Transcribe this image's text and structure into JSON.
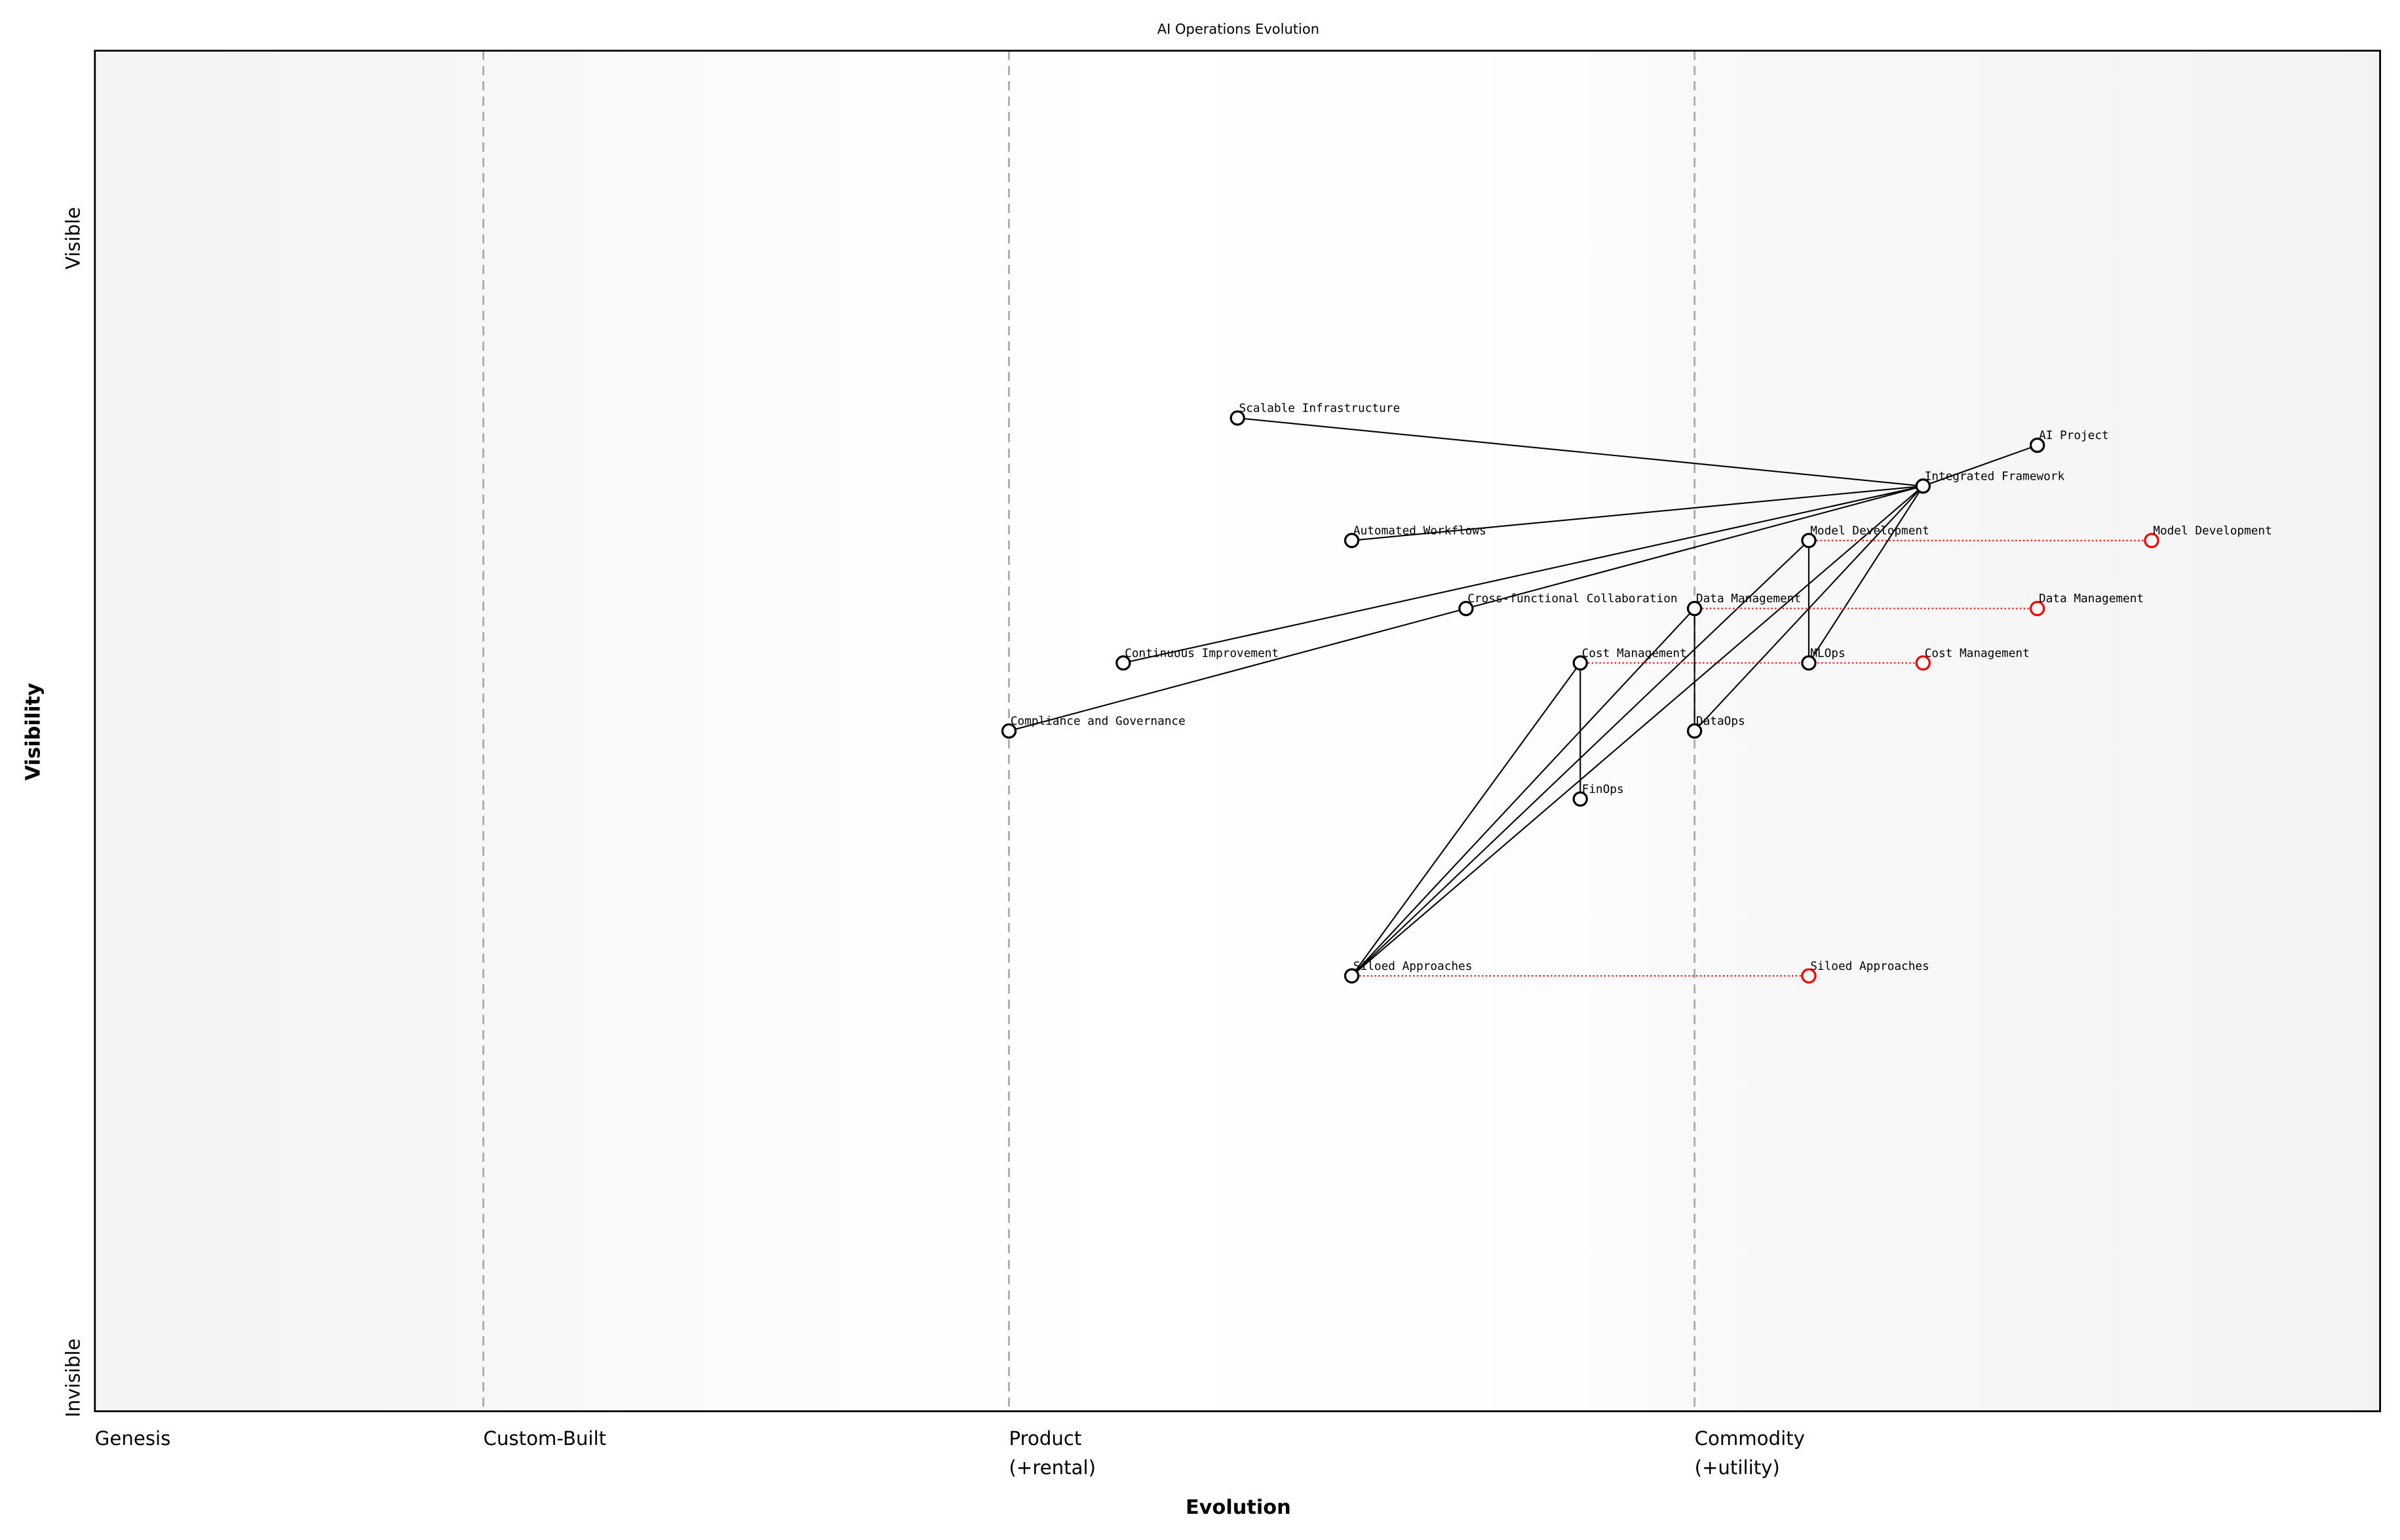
{
  "title": "AI Operations Evolution",
  "x_axis": {
    "label": "Evolution",
    "stages": [
      {
        "name": "Genesis",
        "lines": [
          "Genesis"
        ],
        "evolution": 0.0
      },
      {
        "name": "Custom-Built",
        "lines": [
          "Custom-Built"
        ],
        "evolution": 0.17
      },
      {
        "name": "Product (+rental)",
        "lines": [
          "Product",
          "(+rental)"
        ],
        "evolution": 0.4
      },
      {
        "name": "Commodity (+utility)",
        "lines": [
          "Commodity",
          "(+utility)"
        ],
        "evolution": 0.7
      }
    ]
  },
  "y_axis": {
    "label": "Visibility",
    "top": "Visible",
    "bottom": "Invisible"
  },
  "colors": {
    "node": "#000000",
    "evolved": "#ff0000",
    "stage_line": "#aaaaaa",
    "shade": "#f3f3f3"
  },
  "components": [
    {
      "name": "AI Project",
      "evolution": 0.85,
      "visibility": 0.71
    },
    {
      "name": "Integrated Framework",
      "evolution": 0.8,
      "visibility": 0.68
    },
    {
      "name": "Scalable Infrastructure",
      "evolution": 0.5,
      "visibility": 0.73
    },
    {
      "name": "Automated Workflows",
      "evolution": 0.55,
      "visibility": 0.64
    },
    {
      "name": "Model Development",
      "evolution": 0.75,
      "visibility": 0.64
    },
    {
      "name": "Cross-functional Collaboration",
      "evolution": 0.6,
      "visibility": 0.59
    },
    {
      "name": "Data Management",
      "evolution": 0.7,
      "visibility": 0.59
    },
    {
      "name": "Continuous Improvement",
      "evolution": 0.45,
      "visibility": 0.55
    },
    {
      "name": "Cost Management",
      "evolution": 0.65,
      "visibility": 0.55
    },
    {
      "name": "MLOps",
      "evolution": 0.75,
      "visibility": 0.55
    },
    {
      "name": "Compliance and Governance",
      "evolution": 0.4,
      "visibility": 0.5
    },
    {
      "name": "DataOps",
      "evolution": 0.7,
      "visibility": 0.5
    },
    {
      "name": "FinOps",
      "evolution": 0.65,
      "visibility": 0.45
    },
    {
      "name": "Siloed Approaches",
      "evolution": 0.55,
      "visibility": 0.32
    }
  ],
  "links": [
    [
      "AI Project",
      "Integrated Framework"
    ],
    [
      "Integrated Framework",
      "Scalable Infrastructure"
    ],
    [
      "Integrated Framework",
      "Automated Workflows"
    ],
    [
      "Integrated Framework",
      "Continuous Improvement"
    ],
    [
      "Integrated Framework",
      "Cross-functional Collaboration"
    ],
    [
      "Cross-functional Collaboration",
      "Compliance and Governance"
    ],
    [
      "Integrated Framework",
      "MLOps"
    ],
    [
      "Integrated Framework",
      "DataOps"
    ],
    [
      "Integrated Framework",
      "Siloed Approaches"
    ],
    [
      "Model Development",
      "MLOps"
    ],
    [
      "Model Development",
      "Siloed Approaches"
    ],
    [
      "Data Management",
      "DataOps"
    ],
    [
      "Data Management",
      "Siloed Approaches"
    ],
    [
      "Cost Management",
      "FinOps"
    ],
    [
      "Cost Management",
      "Siloed Approaches"
    ]
  ],
  "evolutions": [
    {
      "name": "Model Development",
      "to_evolution": 0.9
    },
    {
      "name": "Data Management",
      "to_evolution": 0.85
    },
    {
      "name": "Cost Management",
      "to_evolution": 0.8
    },
    {
      "name": "Siloed Approaches",
      "to_evolution": 0.75
    }
  ]
}
